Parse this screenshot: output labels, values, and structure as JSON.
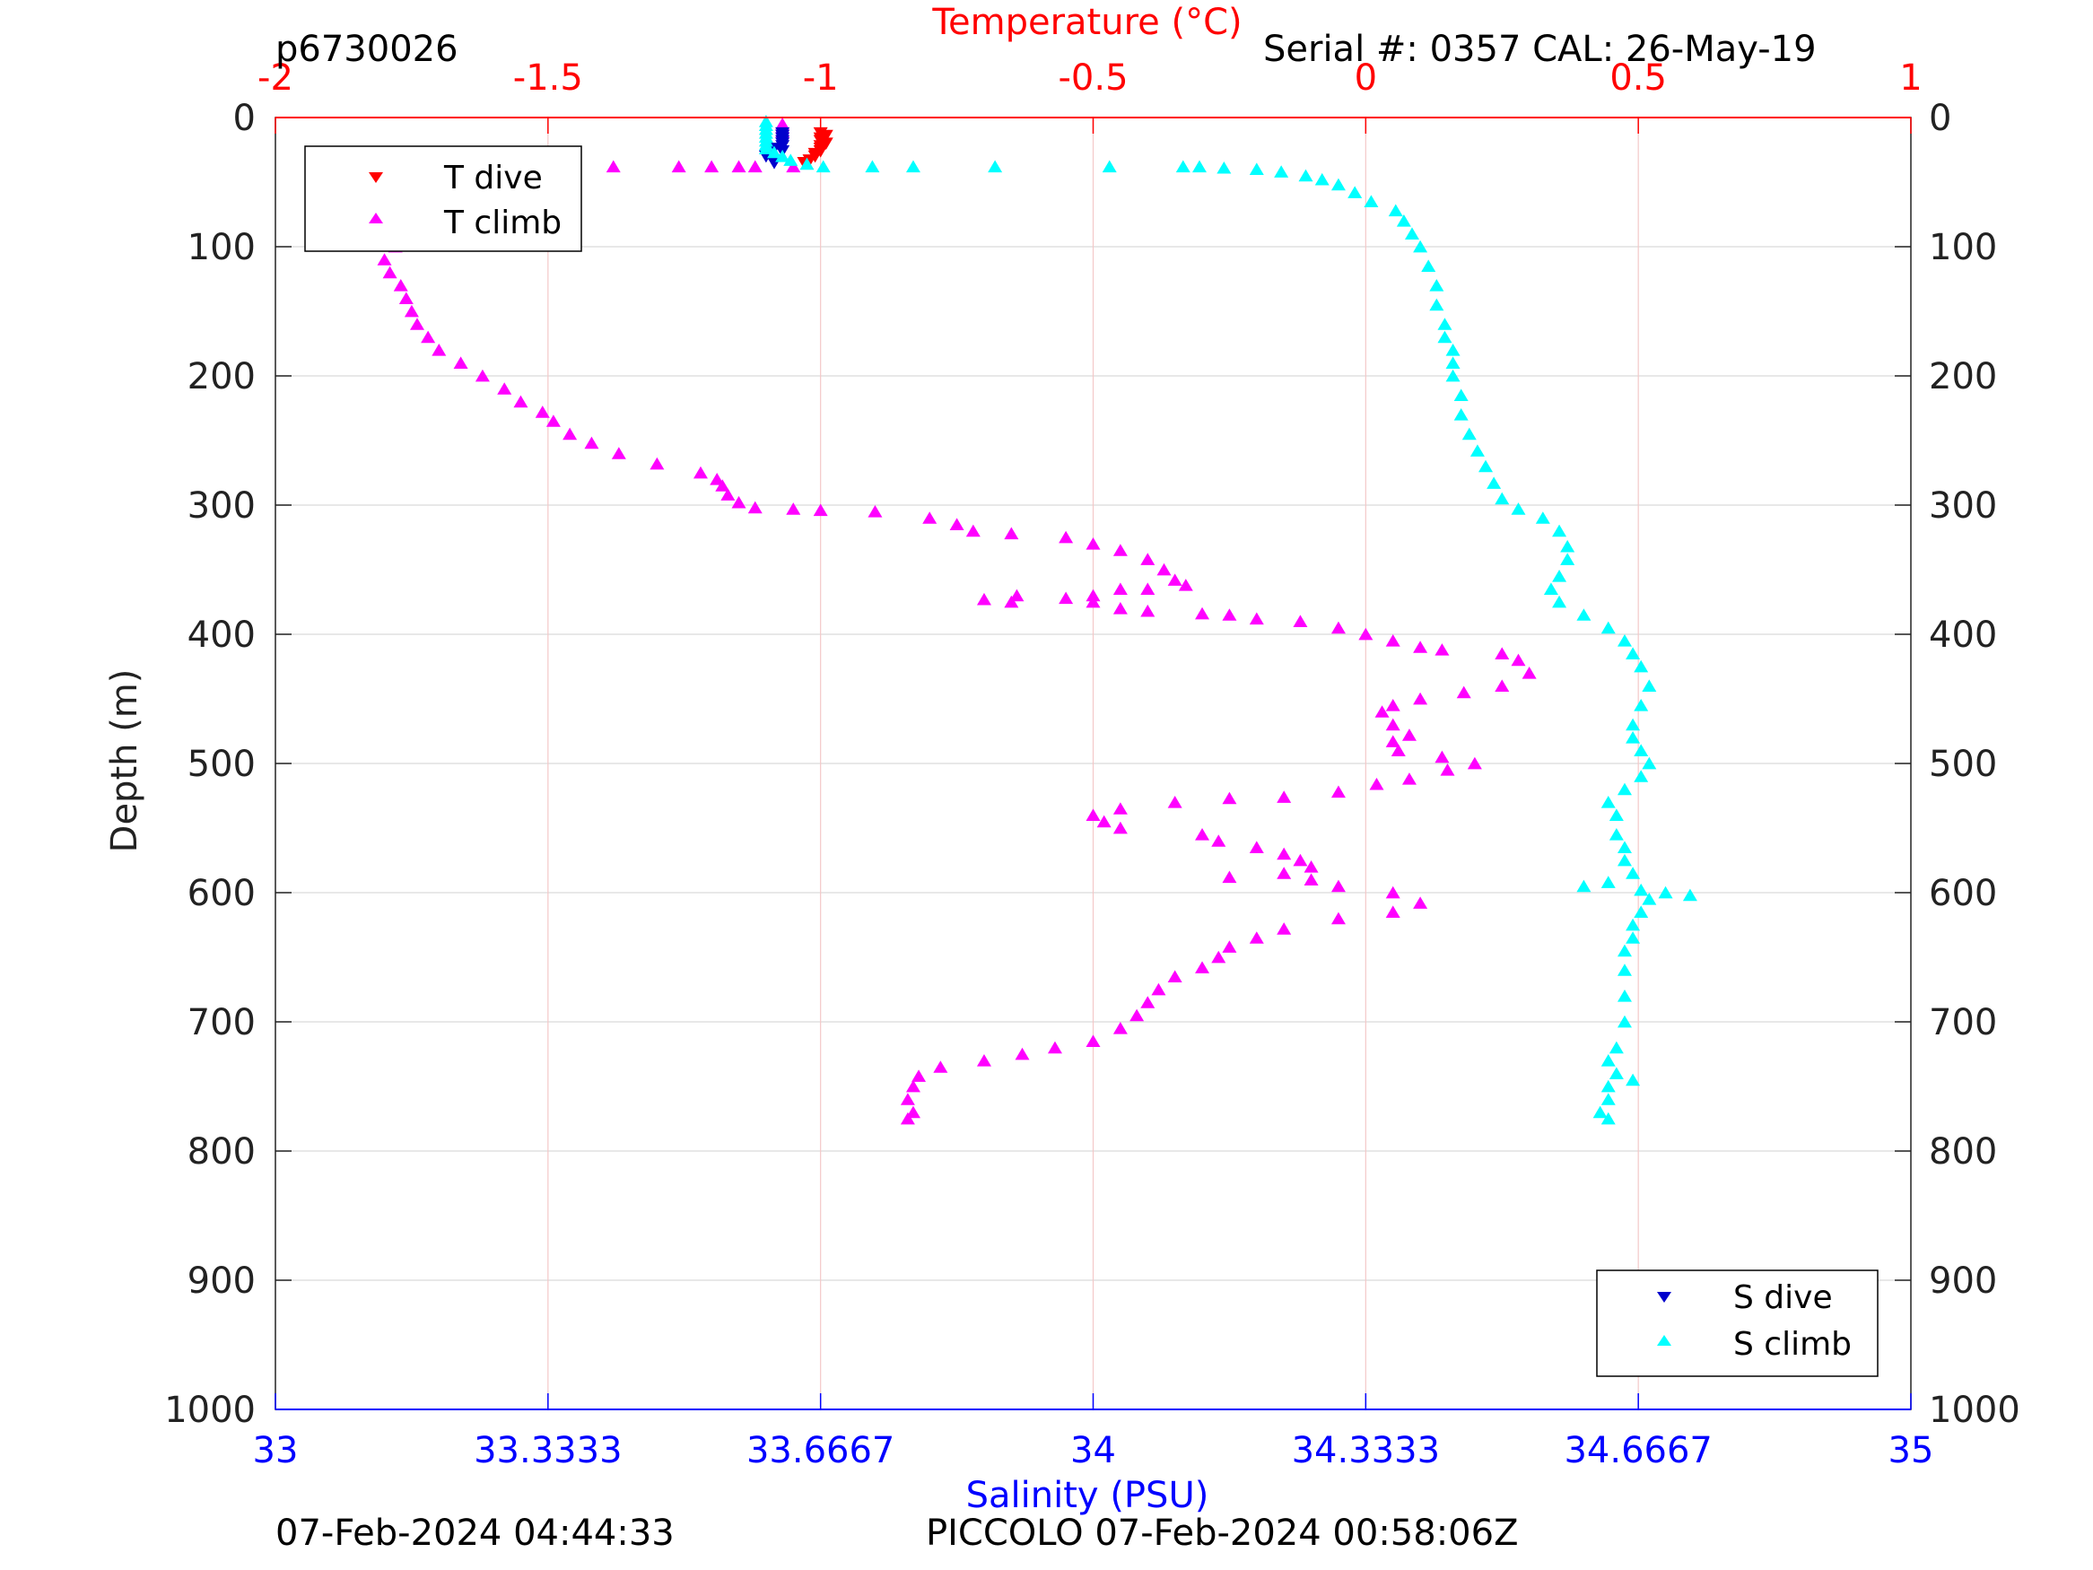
{
  "header": {
    "left_id": "p6730026",
    "right_serial": "Serial #: 0357  CAL: 26-May-19"
  },
  "footer": {
    "left_timestamp": "07-Feb-2024 04:44:33",
    "right_label": "PICCOLO 07-Feb-2024 00:58:06Z"
  },
  "colors": {
    "temperature_axis": "#ff0000",
    "salinity_axis": "#0000ff",
    "t_dive": "#ff0000",
    "t_climb": "#ff00ff",
    "s_dive": "#0000cc",
    "s_climb": "#00ffff",
    "grid_vertical": "#f4c8c8",
    "grid_horizontal": "#d9d9d9"
  },
  "legend_t": {
    "dive": "T dive",
    "climb": "T climb"
  },
  "legend_s": {
    "dive": "S dive",
    "climb": "S climb"
  },
  "chart_data": {
    "type": "scatter",
    "y_label": "Depth (m)",
    "y_lim": [
      0,
      1000
    ],
    "y_reversed": true,
    "y_ticks": [
      "0",
      "100",
      "200",
      "300",
      "400",
      "500",
      "600",
      "700",
      "800",
      "900",
      "1000"
    ],
    "x_top_label": "Temperature (°C)",
    "x_top_lim": [
      -2,
      1
    ],
    "x_top_ticks": [
      "-2",
      "-1.5",
      "-1",
      "-0.5",
      "0",
      "0.5",
      "1"
    ],
    "x_bottom_label": "Salinity (PSU)",
    "x_bottom_lim": [
      33,
      35
    ],
    "x_bottom_ticks": [
      "33",
      "33.3333",
      "33.6667",
      "34",
      "34.3333",
      "34.6667",
      "35"
    ],
    "legend_t_position": "top-left",
    "legend_s_position": "bottom-right",
    "series": [
      {
        "name": "T dive",
        "axis": "temperature",
        "marker": "triangle-down",
        "points": [
          [
            -1.0,
            12
          ],
          [
            -0.99,
            14
          ],
          [
            -1.0,
            16
          ],
          [
            -1.0,
            18
          ],
          [
            -0.99,
            20
          ],
          [
            -1.0,
            22
          ],
          [
            -1.0,
            24
          ],
          [
            -1.0,
            26
          ],
          [
            -1.01,
            28
          ],
          [
            -1.01,
            30
          ],
          [
            -1.02,
            33
          ],
          [
            -1.03,
            35
          ]
        ]
      },
      {
        "name": "T climb",
        "axis": "temperature",
        "marker": "triangle-up",
        "points": [
          [
            -1.07,
            5
          ],
          [
            -1.07,
            8
          ],
          [
            -1.07,
            11
          ],
          [
            -1.05,
            38
          ],
          [
            -1.12,
            38
          ],
          [
            -1.15,
            38
          ],
          [
            -1.2,
            38
          ],
          [
            -1.26,
            38
          ],
          [
            -1.38,
            38
          ],
          [
            -1.46,
            38
          ],
          [
            -1.49,
            40
          ],
          [
            -1.55,
            45
          ],
          [
            -1.6,
            50
          ],
          [
            -1.64,
            56
          ],
          [
            -1.67,
            62
          ],
          [
            -1.69,
            70
          ],
          [
            -1.72,
            78
          ],
          [
            -1.75,
            88
          ],
          [
            -1.78,
            100
          ],
          [
            -1.8,
            110
          ],
          [
            -1.79,
            120
          ],
          [
            -1.77,
            130
          ],
          [
            -1.76,
            140
          ],
          [
            -1.75,
            150
          ],
          [
            -1.74,
            160
          ],
          [
            -1.72,
            170
          ],
          [
            -1.7,
            180
          ],
          [
            -1.66,
            190
          ],
          [
            -1.62,
            200
          ],
          [
            -1.58,
            210
          ],
          [
            -1.55,
            220
          ],
          [
            -1.51,
            228
          ],
          [
            -1.49,
            235
          ],
          [
            -1.46,
            245
          ],
          [
            -1.42,
            252
          ],
          [
            -1.37,
            260
          ],
          [
            -1.3,
            268
          ],
          [
            -1.22,
            275
          ],
          [
            -1.19,
            280
          ],
          [
            -1.18,
            285
          ],
          [
            -1.17,
            292
          ],
          [
            -1.15,
            298
          ],
          [
            -1.12,
            302
          ],
          [
            -1.05,
            303
          ],
          [
            -1.0,
            304
          ],
          [
            -0.9,
            305
          ],
          [
            -0.8,
            310
          ],
          [
            -0.75,
            315
          ],
          [
            -0.72,
            320
          ],
          [
            -0.65,
            322
          ],
          [
            -0.55,
            325
          ],
          [
            -0.5,
            330
          ],
          [
            -0.45,
            335
          ],
          [
            -0.4,
            342
          ],
          [
            -0.37,
            350
          ],
          [
            -0.35,
            358
          ],
          [
            -0.33,
            362
          ],
          [
            -0.4,
            365
          ],
          [
            -0.45,
            365
          ],
          [
            -0.5,
            370
          ],
          [
            -0.55,
            372
          ],
          [
            -0.65,
            375
          ],
          [
            -0.7,
            373
          ],
          [
            -0.64,
            370
          ],
          [
            -0.5,
            375
          ],
          [
            -0.45,
            380
          ],
          [
            -0.4,
            382
          ],
          [
            -0.3,
            384
          ],
          [
            -0.25,
            385
          ],
          [
            -0.2,
            388
          ],
          [
            -0.12,
            390
          ],
          [
            -0.05,
            395
          ],
          [
            0.0,
            400
          ],
          [
            0.05,
            405
          ],
          [
            0.1,
            410
          ],
          [
            0.14,
            412
          ],
          [
            0.25,
            415
          ],
          [
            0.28,
            420
          ],
          [
            0.3,
            430
          ],
          [
            0.25,
            440
          ],
          [
            0.18,
            445
          ],
          [
            0.1,
            450
          ],
          [
            0.05,
            455
          ],
          [
            0.03,
            460
          ],
          [
            0.05,
            470
          ],
          [
            0.08,
            478
          ],
          [
            0.05,
            483
          ],
          [
            0.06,
            490
          ],
          [
            0.14,
            495
          ],
          [
            0.2,
            500
          ],
          [
            0.15,
            505
          ],
          [
            0.08,
            512
          ],
          [
            0.02,
            516
          ],
          [
            -0.05,
            522
          ],
          [
            -0.15,
            526
          ],
          [
            -0.25,
            527
          ],
          [
            -0.35,
            530
          ],
          [
            -0.45,
            535
          ],
          [
            -0.5,
            540
          ],
          [
            -0.48,
            545
          ],
          [
            -0.45,
            550
          ],
          [
            -0.3,
            555
          ],
          [
            -0.27,
            560
          ],
          [
            -0.2,
            565
          ],
          [
            -0.15,
            570
          ],
          [
            -0.12,
            575
          ],
          [
            -0.1,
            580
          ],
          [
            -0.15,
            585
          ],
          [
            -0.25,
            588
          ],
          [
            -0.1,
            590
          ],
          [
            -0.05,
            595
          ],
          [
            0.05,
            600
          ],
          [
            0.1,
            608
          ],
          [
            0.05,
            615
          ],
          [
            -0.05,
            620
          ],
          [
            -0.15,
            628
          ],
          [
            -0.2,
            635
          ],
          [
            -0.25,
            642
          ],
          [
            -0.27,
            650
          ],
          [
            -0.3,
            658
          ],
          [
            -0.35,
            665
          ],
          [
            -0.38,
            675
          ],
          [
            -0.4,
            685
          ],
          [
            -0.42,
            695
          ],
          [
            -0.45,
            705
          ],
          [
            -0.5,
            715
          ],
          [
            -0.57,
            720
          ],
          [
            -0.63,
            725
          ],
          [
            -0.7,
            730
          ],
          [
            -0.78,
            735
          ],
          [
            -0.82,
            742
          ],
          [
            -0.83,
            750
          ],
          [
            -0.84,
            760
          ],
          [
            -0.83,
            770
          ],
          [
            -0.84,
            775
          ]
        ]
      },
      {
        "name": "S dive",
        "axis": "salinity",
        "marker": "triangle-down",
        "points": [
          [
            33.62,
            12
          ],
          [
            33.62,
            14
          ],
          [
            33.62,
            16
          ],
          [
            33.62,
            18
          ],
          [
            33.62,
            20
          ],
          [
            33.62,
            22
          ],
          [
            33.61,
            24
          ],
          [
            33.62,
            26
          ],
          [
            33.6,
            30
          ],
          [
            33.61,
            33
          ],
          [
            33.61,
            35
          ]
        ]
      },
      {
        "name": "S climb",
        "axis": "salinity",
        "marker": "triangle-up",
        "points": [
          [
            33.6,
            3
          ],
          [
            33.6,
            6
          ],
          [
            33.6,
            9
          ],
          [
            33.6,
            12
          ],
          [
            33.6,
            15
          ],
          [
            33.6,
            18
          ],
          [
            33.6,
            21
          ],
          [
            33.6,
            24
          ],
          [
            33.61,
            27
          ],
          [
            33.62,
            30
          ],
          [
            33.63,
            33
          ],
          [
            33.65,
            36
          ],
          [
            33.67,
            38
          ],
          [
            33.73,
            38
          ],
          [
            33.78,
            38
          ],
          [
            33.88,
            38
          ],
          [
            34.02,
            38
          ],
          [
            34.11,
            38
          ],
          [
            34.13,
            38
          ],
          [
            34.16,
            39
          ],
          [
            34.2,
            40
          ],
          [
            34.23,
            42
          ],
          [
            34.26,
            45
          ],
          [
            34.28,
            48
          ],
          [
            34.3,
            52
          ],
          [
            34.32,
            58
          ],
          [
            34.34,
            65
          ],
          [
            34.37,
            72
          ],
          [
            34.38,
            80
          ],
          [
            34.39,
            90
          ],
          [
            34.4,
            100
          ],
          [
            34.41,
            115
          ],
          [
            34.42,
            130
          ],
          [
            34.42,
            145
          ],
          [
            34.43,
            160
          ],
          [
            34.43,
            170
          ],
          [
            34.44,
            180
          ],
          [
            34.44,
            190
          ],
          [
            34.44,
            200
          ],
          [
            34.45,
            215
          ],
          [
            34.45,
            230
          ],
          [
            34.46,
            245
          ],
          [
            34.47,
            258
          ],
          [
            34.48,
            270
          ],
          [
            34.49,
            283
          ],
          [
            34.5,
            295
          ],
          [
            34.52,
            303
          ],
          [
            34.55,
            310
          ],
          [
            34.57,
            320
          ],
          [
            34.58,
            332
          ],
          [
            34.58,
            342
          ],
          [
            34.57,
            355
          ],
          [
            34.56,
            365
          ],
          [
            34.57,
            375
          ],
          [
            34.6,
            385
          ],
          [
            34.63,
            395
          ],
          [
            34.65,
            405
          ],
          [
            34.66,
            415
          ],
          [
            34.67,
            425
          ],
          [
            34.68,
            440
          ],
          [
            34.67,
            455
          ],
          [
            34.66,
            470
          ],
          [
            34.66,
            480
          ],
          [
            34.67,
            490
          ],
          [
            34.68,
            500
          ],
          [
            34.67,
            510
          ],
          [
            34.65,
            520
          ],
          [
            34.63,
            530
          ],
          [
            34.64,
            540
          ],
          [
            34.64,
            555
          ],
          [
            34.65,
            565
          ],
          [
            34.65,
            575
          ],
          [
            34.66,
            585
          ],
          [
            34.63,
            592
          ],
          [
            34.6,
            595
          ],
          [
            34.67,
            598
          ],
          [
            34.7,
            600
          ],
          [
            34.73,
            602
          ],
          [
            34.68,
            605
          ],
          [
            34.67,
            615
          ],
          [
            34.66,
            625
          ],
          [
            34.66,
            635
          ],
          [
            34.65,
            645
          ],
          [
            34.65,
            660
          ],
          [
            34.65,
            680
          ],
          [
            34.65,
            700
          ],
          [
            34.64,
            720
          ],
          [
            34.63,
            730
          ],
          [
            34.64,
            740
          ],
          [
            34.66,
            745
          ],
          [
            34.63,
            750
          ],
          [
            34.63,
            760
          ],
          [
            34.62,
            770
          ],
          [
            34.63,
            775
          ]
        ]
      }
    ]
  }
}
